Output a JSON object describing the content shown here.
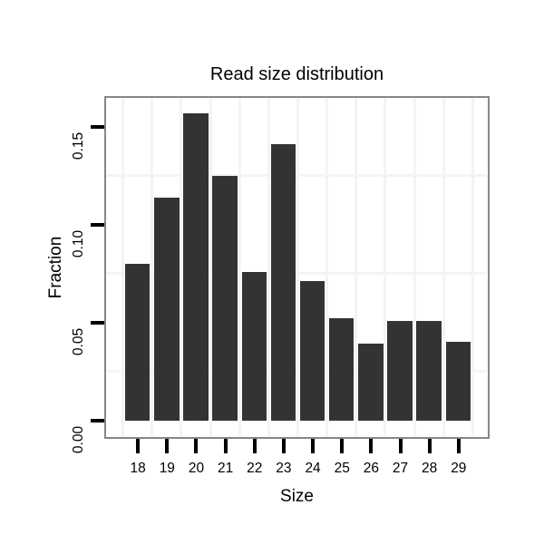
{
  "chart_data": {
    "type": "bar",
    "title": "Read size distribution",
    "xlabel": "Size",
    "ylabel": "Fraction",
    "categories": [
      "18",
      "19",
      "20",
      "21",
      "22",
      "23",
      "24",
      "25",
      "26",
      "27",
      "28",
      "29"
    ],
    "values": [
      0.08,
      0.114,
      0.157,
      0.125,
      0.076,
      0.141,
      0.071,
      0.052,
      0.039,
      0.051,
      0.051,
      0.04
    ],
    "yticks": [
      0,
      0.05,
      0.1,
      0.15
    ],
    "ytick_labels": [
      "0.00",
      "0.05",
      "0.10",
      "0.15"
    ],
    "minor_gridlines_y": [
      0.025,
      0.075,
      0.125
    ],
    "ylim": [
      -0.008,
      0.1647
    ],
    "grid": "minor horizontal lines and vertical lines at category boundaries",
    "legend": "none",
    "colors": {
      "bar": "#333333",
      "panel_border": "#868686",
      "gridline": "#f4f4f4",
      "axis_tick": "#000000",
      "text": "#000000",
      "background": "#ffffff"
    }
  }
}
